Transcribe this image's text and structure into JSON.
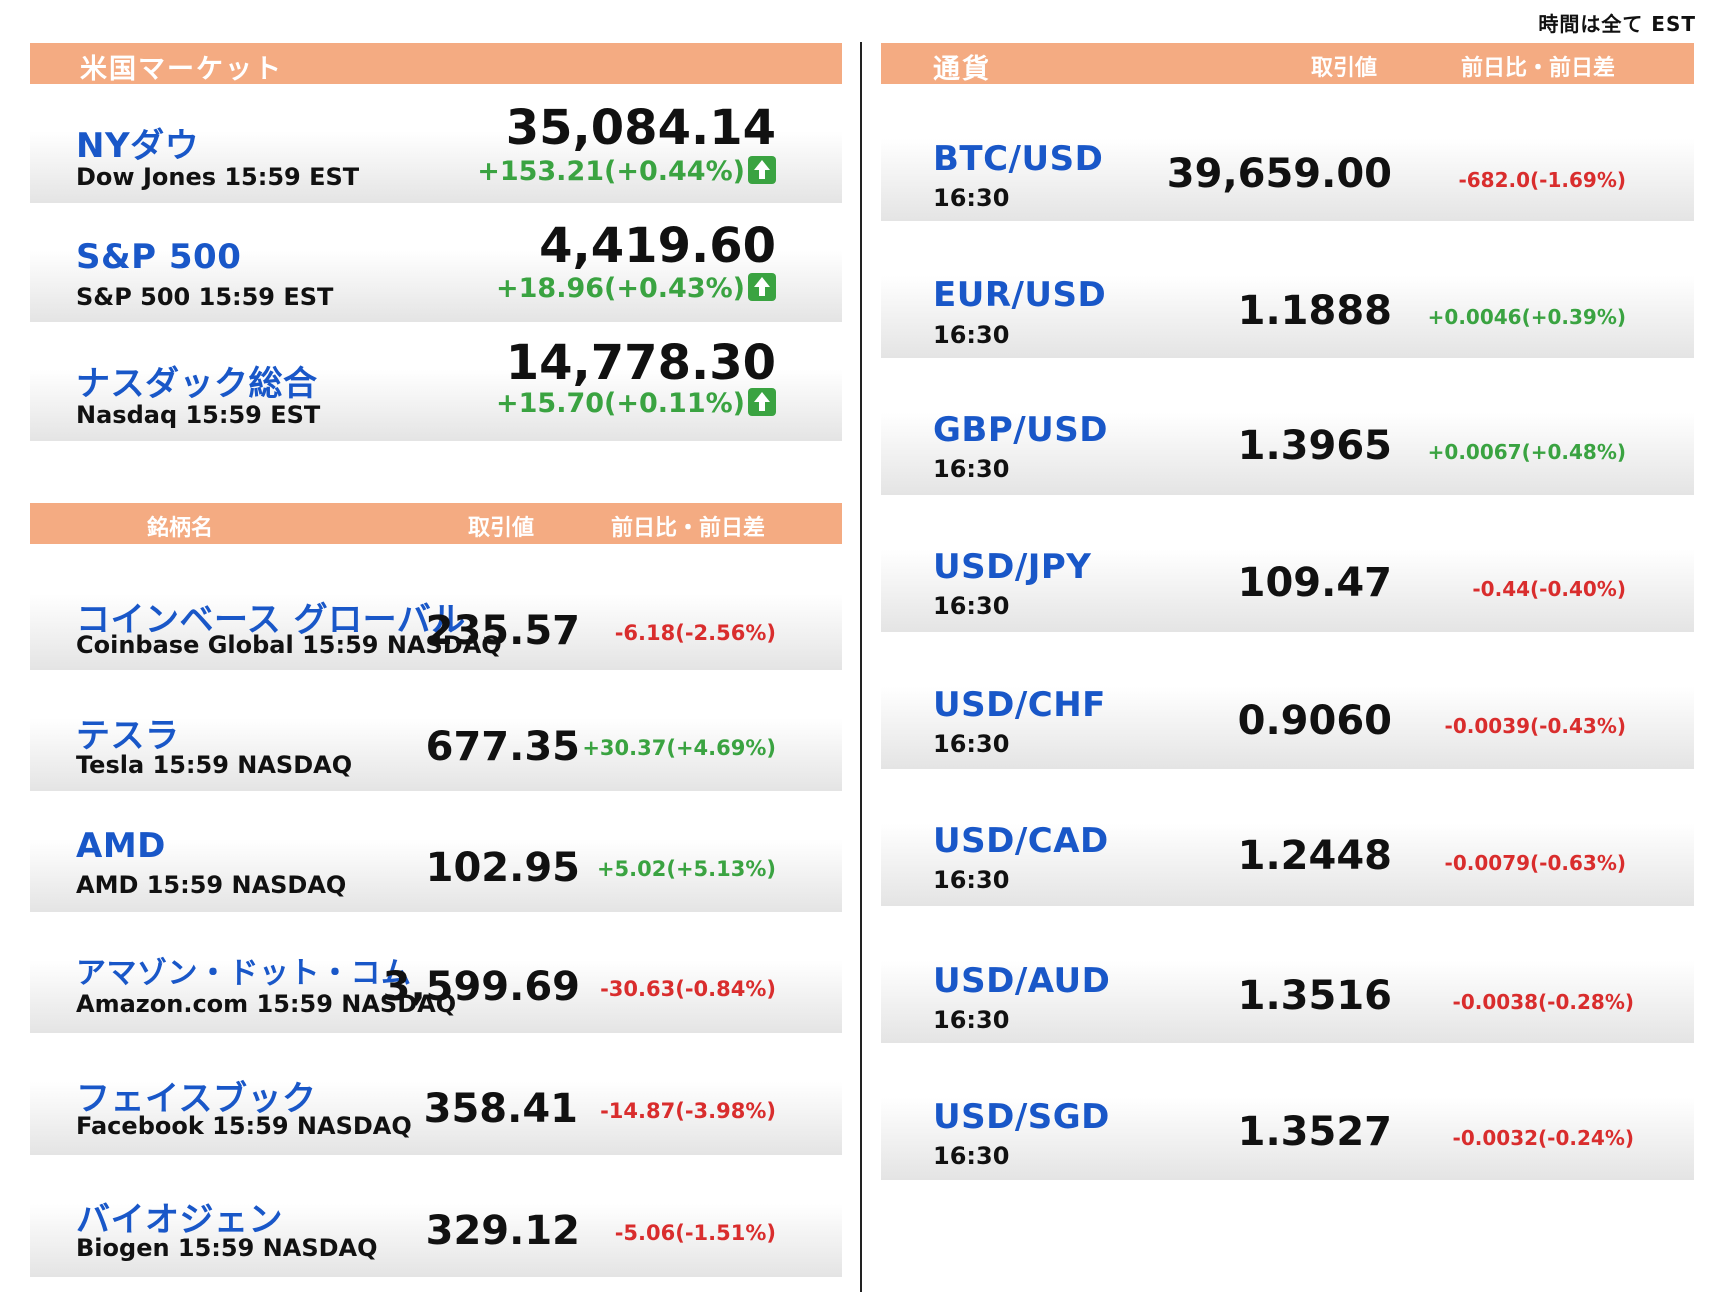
{
  "timezone_note": "時間は全て EST",
  "indices": {
    "header": "米国マーケット",
    "items": [
      {
        "name": "NYダウ",
        "sub": "Dow Jones 15:59 EST",
        "value": "35,084.14",
        "change": "+153.21(+0.44%)",
        "direction": "up"
      },
      {
        "name": "S&P 500",
        "sub": "S&P 500 15:59 EST",
        "value": "4,419.60",
        "change": "+18.96(+0.43%)",
        "direction": "up"
      },
      {
        "name": "ナスダック総合",
        "sub": "Nasdaq 15:59 EST",
        "value": "14,778.30",
        "change": "+15.70(+0.11%)",
        "direction": "up"
      }
    ]
  },
  "stocks": {
    "header": {
      "name": "銘柄名",
      "price": "取引値",
      "change": "前日比・前日差"
    },
    "items": [
      {
        "name": "コインベース グローバル",
        "sub": "Coinbase Global 15:59  NASDAQ",
        "price": "235.57",
        "change": "-6.18(-2.56%)",
        "direction": "down"
      },
      {
        "name": "テスラ",
        "sub": "Tesla 15:59  NASDAQ",
        "price": "677.35",
        "change": "+30.37(+4.69%)",
        "direction": "up"
      },
      {
        "name": "AMD",
        "sub": "AMD 15:59  NASDAQ",
        "price": "102.95",
        "change": "+5.02(+5.13%)",
        "direction": "up"
      },
      {
        "name": "アマゾン・ドット・コム",
        "sub": "Amazon.com 15:59  NASDAQ",
        "price": "3,599.69",
        "change": "-30.63(-0.84%)",
        "direction": "down"
      },
      {
        "name": "フェイスブック",
        "sub": "Facebook 15:59  NASDAQ",
        "price": "358.41",
        "change": "-14.87(-3.98%)",
        "direction": "down"
      },
      {
        "name": "バイオジェン",
        "sub": "Biogen 15:59  NASDAQ",
        "price": "329.12",
        "change": "-5.06(-1.51%)",
        "direction": "down"
      }
    ]
  },
  "currencies": {
    "header": {
      "name": "通貨",
      "price": "取引値",
      "change": "前日比・前日差"
    },
    "items": [
      {
        "pair": "BTC/USD",
        "time": "16:30",
        "price": "39,659.00",
        "change": "-682.0(-1.69%)",
        "direction": "down"
      },
      {
        "pair": "EUR/USD",
        "time": "16:30",
        "price": "1.1888",
        "change": "+0.0046(+0.39%)",
        "direction": "up"
      },
      {
        "pair": "GBP/USD",
        "time": "16:30",
        "price": "1.3965",
        "change": "+0.0067(+0.48%)",
        "direction": "up"
      },
      {
        "pair": "USD/JPY",
        "time": "16:30",
        "price": "109.47",
        "change": "-0.44(-0.40%)",
        "direction": "down"
      },
      {
        "pair": "USD/CHF",
        "time": "16:30",
        "price": "0.9060",
        "change": "-0.0039(-0.43%)",
        "direction": "down"
      },
      {
        "pair": "USD/CAD",
        "time": "16:30",
        "price": "1.2448",
        "change": "-0.0079(-0.63%)",
        "direction": "down"
      },
      {
        "pair": "USD/AUD",
        "time": "16:30",
        "price": "1.3516",
        "change": "-0.0038(-0.28%)",
        "direction": "down"
      },
      {
        "pair": "USD/SGD",
        "time": "16:30",
        "price": "1.3527",
        "change": "-0.0032(-0.24%)",
        "direction": "down"
      }
    ]
  }
}
